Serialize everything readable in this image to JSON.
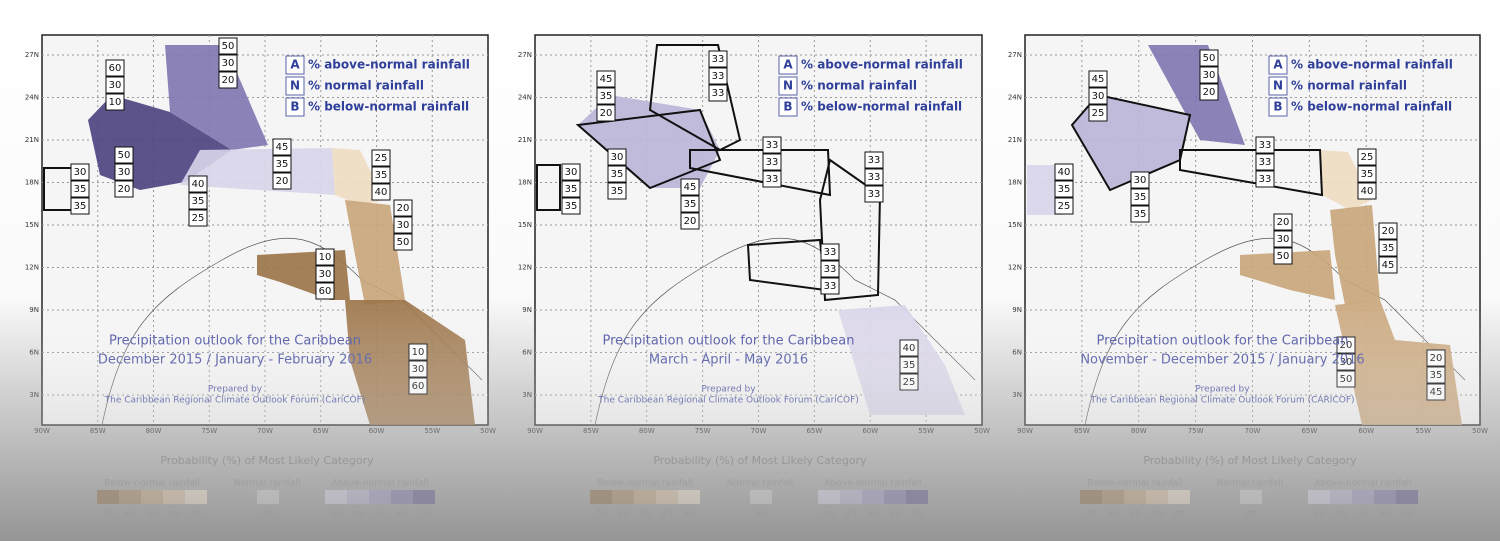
{
  "common": {
    "lat_labels": [
      "27N",
      "24N",
      "21N",
      "18N",
      "15N",
      "12N",
      "9N",
      "6N",
      "3N"
    ],
    "lon_labels": [
      "90W",
      "85W",
      "80W",
      "75W",
      "70W",
      "65W",
      "60W",
      "55W",
      "50W"
    ],
    "key": [
      {
        "letter": "A",
        "text": "% above-normal rainfall"
      },
      {
        "letter": "N",
        "text": "% normal rainfall"
      },
      {
        "letter": "B",
        "text": "% below-normal rainfall"
      }
    ],
    "legend_title": "Probability (%) of Most Likely Category",
    "legend_groups": [
      "Below-normal rainfall",
      "Normal rainfall",
      "Above-normal rainfall"
    ],
    "scale": {
      "below": [
        "70",
        "60",
        "50",
        "45",
        "40"
      ],
      "normal": [
        "40"
      ],
      "above": [
        "40",
        "45",
        "50",
        "60",
        "70"
      ]
    },
    "prepared_by": "Prepared by"
  },
  "panels": [
    {
      "title": [
        "Precipitation outlook for the Caribbean",
        "December 2015 / January - February 2016"
      ],
      "forum": "The Caribbean Regional Climate Outlook Forum (CariCOF)",
      "regions": [
        [
          60,
          30,
          10
        ],
        [
          50,
          30,
          20
        ],
        [
          30,
          35,
          35
        ],
        [
          50,
          30,
          20
        ],
        [
          45,
          35,
          20
        ],
        [
          40,
          35,
          25
        ],
        [
          25,
          35,
          40
        ],
        [
          20,
          30,
          50
        ],
        [
          10,
          30,
          60
        ],
        [
          10,
          30,
          60
        ]
      ]
    },
    {
      "title": [
        "Precipitation outlook for the Caribbean",
        "March - April - May 2016"
      ],
      "forum": "The Caribbean Regional Climate Outlook Forum (CariCOF)",
      "regions": [
        [
          45,
          35,
          20
        ],
        [
          33,
          33,
          33
        ],
        [
          30,
          35,
          35
        ],
        [
          30,
          35,
          35
        ],
        [
          33,
          33,
          33
        ],
        [
          33,
          33,
          33
        ],
        [
          45,
          35,
          20
        ],
        [
          33,
          33,
          33
        ],
        [
          40,
          35,
          25
        ]
      ]
    },
    {
      "title": [
        "Precipitation outlook for the Caribbean",
        "November - December 2015 / January 2016"
      ],
      "forum": "The Caribbean Regional Climate Outlook Forum (CARICOF)",
      "regions": [
        [
          45,
          30,
          25
        ],
        [
          50,
          30,
          20
        ],
        [
          40,
          35,
          25
        ],
        [
          30,
          35,
          35
        ],
        [
          33,
          33,
          33
        ],
        [
          25,
          35,
          40
        ],
        [
          20,
          30,
          50
        ],
        [
          20,
          35,
          45
        ],
        [
          20,
          30,
          50
        ],
        [
          20,
          35,
          45
        ]
      ]
    }
  ]
}
